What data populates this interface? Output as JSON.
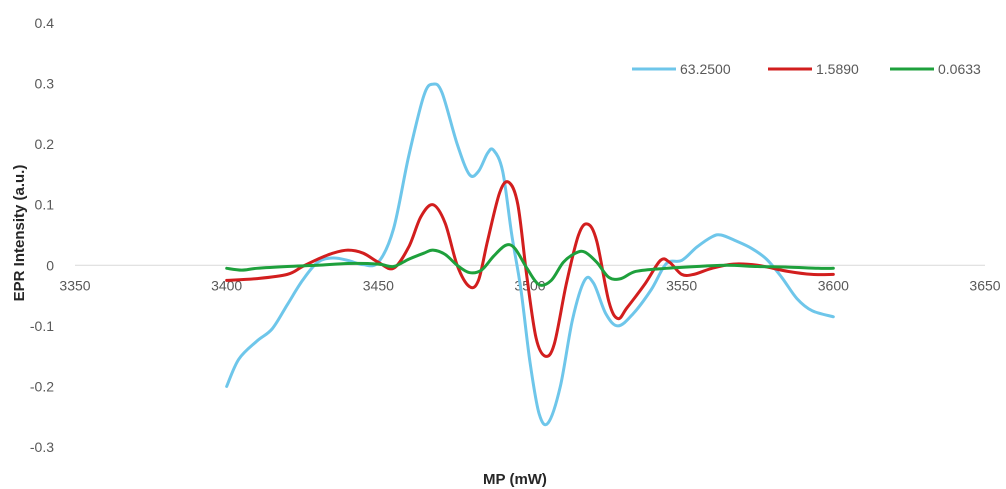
{
  "chart_data": {
    "type": "line",
    "smooth": true,
    "title": "",
    "xlabel": "MP (mW)",
    "ylabel": "EPR Intensity (a.u.)",
    "xlim": [
      3350,
      3650
    ],
    "ylim": [
      -0.3,
      0.4
    ],
    "x_ticks": [
      "3350",
      "3400",
      "3450",
      "3500",
      "3550",
      "3600",
      "3650"
    ],
    "y_ticks": [
      "0.4",
      "0.3",
      "0.2",
      "0.1",
      "0",
      "-0.1",
      "-0.2",
      "-0.3"
    ],
    "grid": false,
    "legend_position": "top-right",
    "series": [
      {
        "name": "63.2500",
        "color": "#6EC6EA",
        "points": [
          [
            3400,
            -0.2
          ],
          [
            3404,
            -0.155
          ],
          [
            3410,
            -0.125
          ],
          [
            3415,
            -0.105
          ],
          [
            3420,
            -0.065
          ],
          [
            3425,
            -0.025
          ],
          [
            3430,
            0.005
          ],
          [
            3435,
            0.012
          ],
          [
            3440,
            0.008
          ],
          [
            3445,
            0.001
          ],
          [
            3450,
            0.005
          ],
          [
            3455,
            0.06
          ],
          [
            3460,
            0.18
          ],
          [
            3465,
            0.28
          ],
          [
            3468,
            0.299
          ],
          [
            3471,
            0.285
          ],
          [
            3476,
            0.2
          ],
          [
            3480,
            0.15
          ],
          [
            3483,
            0.155
          ],
          [
            3486,
            0.185
          ],
          [
            3488,
            0.19
          ],
          [
            3491,
            0.155
          ],
          [
            3494,
            0.05
          ],
          [
            3497,
            -0.04
          ],
          [
            3500,
            -0.16
          ],
          [
            3503,
            -0.245
          ],
          [
            3506,
            -0.26
          ],
          [
            3510,
            -0.2
          ],
          [
            3514,
            -0.09
          ],
          [
            3518,
            -0.025
          ],
          [
            3521,
            -0.03
          ],
          [
            3525,
            -0.08
          ],
          [
            3529,
            -0.1
          ],
          [
            3534,
            -0.08
          ],
          [
            3540,
            -0.04
          ],
          [
            3545,
            0.003
          ],
          [
            3550,
            0.008
          ],
          [
            3555,
            0.03
          ],
          [
            3560,
            0.047
          ],
          [
            3563,
            0.05
          ],
          [
            3568,
            0.04
          ],
          [
            3573,
            0.028
          ],
          [
            3578,
            0.01
          ],
          [
            3583,
            -0.02
          ],
          [
            3588,
            -0.055
          ],
          [
            3593,
            -0.075
          ],
          [
            3600,
            -0.085
          ]
        ]
      },
      {
        "name": "1.5890",
        "color": "#D21E1E",
        "points": [
          [
            3400,
            -0.025
          ],
          [
            3410,
            -0.022
          ],
          [
            3420,
            -0.015
          ],
          [
            3425,
            -0.002
          ],
          [
            3430,
            0.01
          ],
          [
            3435,
            0.02
          ],
          [
            3440,
            0.025
          ],
          [
            3445,
            0.02
          ],
          [
            3450,
            0.005
          ],
          [
            3455,
            -0.005
          ],
          [
            3460,
            0.03
          ],
          [
            3464,
            0.08
          ],
          [
            3468,
            0.1
          ],
          [
            3472,
            0.07
          ],
          [
            3476,
            0.0
          ],
          [
            3480,
            -0.035
          ],
          [
            3483,
            -0.025
          ],
          [
            3486,
            0.04
          ],
          [
            3490,
            0.12
          ],
          [
            3493,
            0.137
          ],
          [
            3496,
            0.1
          ],
          [
            3499,
            -0.02
          ],
          [
            3502,
            -0.12
          ],
          [
            3505,
            -0.15
          ],
          [
            3508,
            -0.13
          ],
          [
            3512,
            -0.03
          ],
          [
            3516,
            0.05
          ],
          [
            3519,
            0.068
          ],
          [
            3522,
            0.04
          ],
          [
            3526,
            -0.06
          ],
          [
            3529,
            -0.088
          ],
          [
            3532,
            -0.07
          ],
          [
            3538,
            -0.03
          ],
          [
            3543,
            0.008
          ],
          [
            3546,
            0.005
          ],
          [
            3550,
            -0.015
          ],
          [
            3554,
            -0.015
          ],
          [
            3560,
            -0.005
          ],
          [
            3567,
            0.002
          ],
          [
            3575,
            0.0
          ],
          [
            3585,
            -0.01
          ],
          [
            3593,
            -0.015
          ],
          [
            3600,
            -0.015
          ]
        ]
      },
      {
        "name": "0.0633",
        "color": "#1EA03C",
        "points": [
          [
            3400,
            -0.005
          ],
          [
            3405,
            -0.008
          ],
          [
            3410,
            -0.005
          ],
          [
            3420,
            -0.002
          ],
          [
            3430,
            0.0
          ],
          [
            3440,
            0.003
          ],
          [
            3450,
            0.002
          ],
          [
            3455,
            -0.002
          ],
          [
            3460,
            0.01
          ],
          [
            3465,
            0.02
          ],
          [
            3468,
            0.025
          ],
          [
            3472,
            0.018
          ],
          [
            3476,
            0.0
          ],
          [
            3480,
            -0.012
          ],
          [
            3484,
            -0.008
          ],
          [
            3488,
            0.015
          ],
          [
            3492,
            0.033
          ],
          [
            3495,
            0.028
          ],
          [
            3499,
            -0.005
          ],
          [
            3503,
            -0.032
          ],
          [
            3507,
            -0.025
          ],
          [
            3511,
            0.005
          ],
          [
            3515,
            0.02
          ],
          [
            3518,
            0.022
          ],
          [
            3522,
            0.005
          ],
          [
            3526,
            -0.02
          ],
          [
            3530,
            -0.022
          ],
          [
            3535,
            -0.01
          ],
          [
            3545,
            -0.005
          ],
          [
            3555,
            -0.002
          ],
          [
            3565,
            0.0
          ],
          [
            3575,
            -0.002
          ],
          [
            3585,
            -0.003
          ],
          [
            3595,
            -0.005
          ],
          [
            3600,
            -0.005
          ]
        ]
      }
    ]
  }
}
